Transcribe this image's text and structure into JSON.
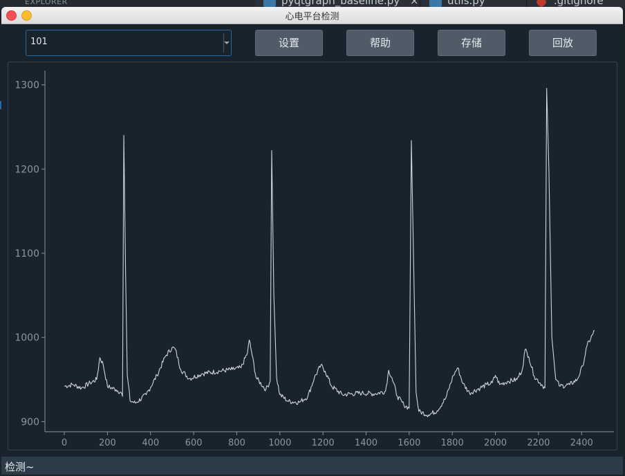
{
  "background_editor": {
    "explorer_label": "EXPLORER",
    "tabs": [
      {
        "label": "pyqtgraph_baseline.py",
        "close": "×",
        "icon": "python-icon"
      },
      {
        "label": "utils.py",
        "icon": "python-icon"
      },
      {
        "label": ".gitignore",
        "icon": "git-icon"
      }
    ]
  },
  "window": {
    "title": "心电平台检测"
  },
  "toolbar": {
    "record_select": "101",
    "buttons": [
      "设置",
      "帮助",
      "存储",
      "回放"
    ]
  },
  "status": {
    "text": "检测~"
  },
  "colors": {
    "window_bg": "#19232d",
    "line": "#d2d6da",
    "axis": "#8a96a2",
    "button_bg": "#4f5c67",
    "accent": "#2b6aa0"
  },
  "chart_data": {
    "type": "line",
    "title": "",
    "xlabel": "",
    "ylabel": "",
    "xlim": [
      -90,
      2550
    ],
    "ylim": [
      888,
      1317
    ],
    "x_ticks": [
      0,
      200,
      400,
      600,
      800,
      1000,
      1200,
      1400,
      1600,
      1800,
      2000,
      2200,
      2400
    ],
    "y_ticks": [
      900,
      1000,
      1100,
      1200,
      1300
    ],
    "grid": false,
    "series": [
      {
        "points": [
          [
            0,
            942
          ],
          [
            40,
            944
          ],
          [
            80,
            940
          ],
          [
            120,
            946
          ],
          [
            150,
            950
          ],
          [
            165,
            976
          ],
          [
            180,
            968
          ],
          [
            200,
            942
          ],
          [
            240,
            938
          ],
          [
            262,
            935
          ],
          [
            270,
            930
          ],
          [
            276,
            1240
          ],
          [
            284,
            1080
          ],
          [
            292,
            955
          ],
          [
            305,
            925
          ],
          [
            330,
            922
          ],
          [
            380,
            932
          ],
          [
            430,
            955
          ],
          [
            470,
            978
          ],
          [
            500,
            988
          ],
          [
            515,
            986
          ],
          [
            540,
            962
          ],
          [
            580,
            951
          ],
          [
            640,
            957
          ],
          [
            720,
            960
          ],
          [
            780,
            962
          ],
          [
            820,
            964
          ],
          [
            850,
            982
          ],
          [
            858,
            997
          ],
          [
            868,
            984
          ],
          [
            890,
            952
          ],
          [
            935,
            938
          ],
          [
            955,
            948
          ],
          [
            962,
            1222
          ],
          [
            972,
            1050
          ],
          [
            985,
            952
          ],
          [
            1000,
            932
          ],
          [
            1040,
            924
          ],
          [
            1090,
            923
          ],
          [
            1130,
            930
          ],
          [
            1160,
            952
          ],
          [
            1190,
            967
          ],
          [
            1210,
            960
          ],
          [
            1240,
            942
          ],
          [
            1290,
            932
          ],
          [
            1380,
            934
          ],
          [
            1440,
            933
          ],
          [
            1490,
            936
          ],
          [
            1505,
            961
          ],
          [
            1520,
            952
          ],
          [
            1545,
            930
          ],
          [
            1575,
            920
          ],
          [
            1600,
            916
          ],
          [
            1610,
            1234
          ],
          [
            1622,
            1070
          ],
          [
            1632,
            935
          ],
          [
            1645,
            912
          ],
          [
            1690,
            908
          ],
          [
            1730,
            913
          ],
          [
            1770,
            928
          ],
          [
            1805,
            955
          ],
          [
            1825,
            964
          ],
          [
            1850,
            945
          ],
          [
            1880,
            934
          ],
          [
            1930,
            940
          ],
          [
            1960,
            944
          ],
          [
            1985,
            946
          ],
          [
            2000,
            955
          ],
          [
            2020,
            944
          ],
          [
            2060,
            948
          ],
          [
            2100,
            950
          ],
          [
            2125,
            962
          ],
          [
            2138,
            986
          ],
          [
            2155,
            977
          ],
          [
            2180,
            954
          ],
          [
            2215,
            944
          ],
          [
            2230,
            940
          ],
          [
            2238,
            1296
          ],
          [
            2248,
            1200
          ],
          [
            2262,
            1000
          ],
          [
            2280,
            950
          ],
          [
            2300,
            942
          ],
          [
            2345,
            944
          ],
          [
            2380,
            950
          ],
          [
            2405,
            966
          ],
          [
            2425,
            990
          ],
          [
            2450,
            1003
          ],
          [
            2460,
            1008
          ]
        ]
      }
    ]
  }
}
